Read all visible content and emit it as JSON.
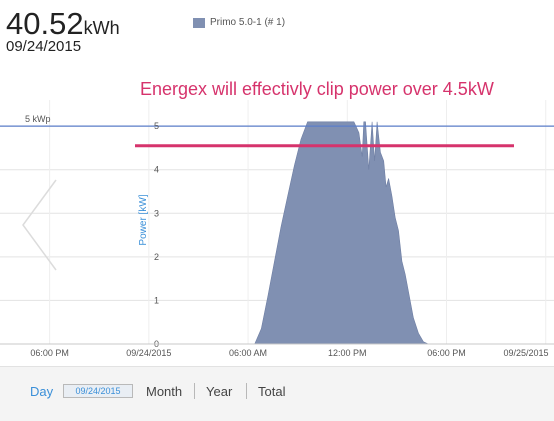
{
  "header": {
    "total_value": "40.52",
    "total_unit": "kWh",
    "date": "09/24/2015"
  },
  "annotation": "Energex will effectivly clip power over 4.5kW",
  "toolbar": {
    "day_label": "Day",
    "date_value": "09/24/2015",
    "month_label": "Month",
    "year_label": "Year",
    "total_label": "Total"
  },
  "colors": {
    "series": "#8090b2",
    "reference_line": "#5b7ec9",
    "annotation_line": "#d6336c",
    "accent": "#3a8fd8"
  },
  "chart_data": {
    "type": "area",
    "title": "",
    "ylabel": "Power [kW]",
    "xlabel": "",
    "legend": {
      "position": "top",
      "entries": [
        "Primo 5.0-1 (# 1)"
      ]
    },
    "x_ticks": [
      "06:00 PM",
      "09/24/2015",
      "06:00 AM",
      "12:00 PM",
      "06:00 PM",
      "09/25/2015"
    ],
    "x_tick_hours": [
      -6,
      0,
      6,
      12,
      18,
      24
    ],
    "xlim": [
      -9,
      24.5
    ],
    "ylim": [
      0,
      5.6
    ],
    "y_ticks": [
      "0",
      "1",
      "2",
      "3",
      "4",
      "5"
    ],
    "y_tick_values": [
      0,
      1,
      2,
      3,
      4,
      5
    ],
    "grid": true,
    "reference_lines": [
      {
        "label": "5 kWp",
        "y": 5.0
      },
      {
        "label": "",
        "y": 4.55
      }
    ],
    "series": [
      {
        "name": "Primo 5.0-1 (# 1)",
        "x": [
          6.4,
          6.8,
          7.2,
          7.6,
          8.0,
          8.4,
          8.8,
          9.2,
          9.6,
          10.0,
          10.6,
          11.0,
          11.6,
          12.0,
          12.4,
          12.7,
          12.9,
          13.0,
          13.1,
          13.3,
          13.5,
          13.65,
          13.8,
          14.0,
          14.2,
          14.35,
          14.5,
          14.7,
          14.9,
          15.1,
          15.3,
          15.5,
          15.75,
          16.0,
          16.3,
          16.6,
          16.9,
          17.3,
          17.6
        ],
        "y": [
          0.0,
          0.35,
          1.1,
          1.9,
          2.7,
          3.4,
          4.1,
          4.7,
          5.1,
          5.1,
          5.1,
          5.1,
          5.1,
          5.1,
          5.1,
          4.85,
          4.3,
          5.1,
          5.1,
          4.0,
          5.1,
          4.2,
          5.1,
          4.4,
          4.2,
          3.6,
          3.8,
          3.4,
          2.9,
          2.6,
          1.9,
          1.6,
          1.1,
          0.6,
          0.25,
          0.05,
          0.0,
          0.0,
          0.0
        ]
      }
    ]
  }
}
